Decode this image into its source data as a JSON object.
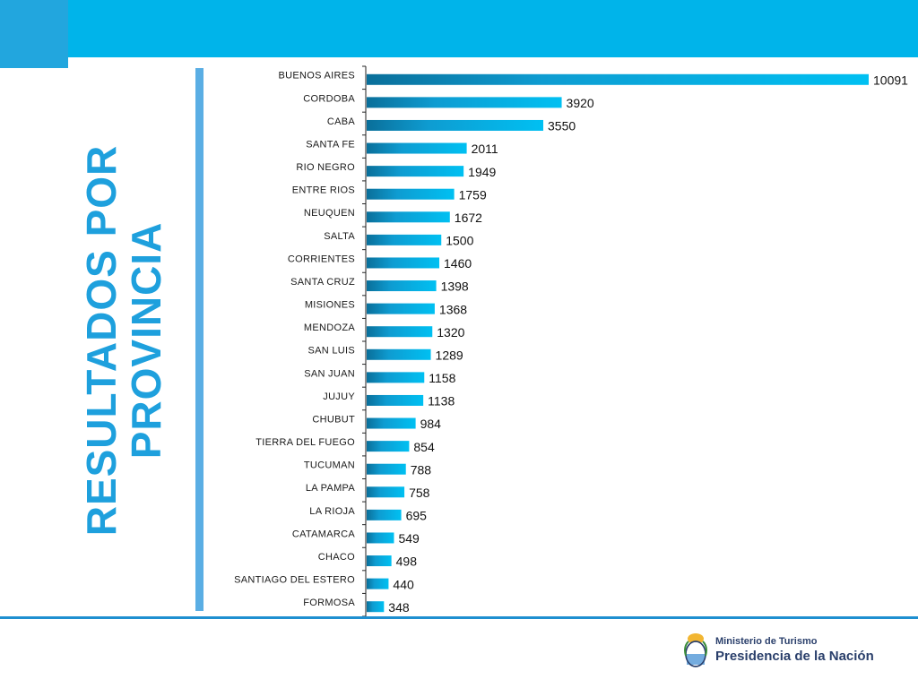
{
  "header": {
    "accent_color": "#00b4ea"
  },
  "side_title": {
    "line1": "RESULTADOS POR",
    "line2": "PROVINCIA"
  },
  "logo": {
    "line1": "Ministerio de Turismo",
    "line2": "Presidencia de la Nación",
    "icon": "argentina-coat-of-arms-icon"
  },
  "chart_data": {
    "type": "bar",
    "orientation": "horizontal",
    "title": "",
    "xlabel": "",
    "ylabel": "",
    "grid": false,
    "xlim": [
      0,
      10091
    ],
    "bar_color": "#00b4ea",
    "categories": [
      "BUENOS AIRES",
      "CORDOBA",
      "CABA",
      "SANTA FE",
      "RIO NEGRO",
      "ENTRE RIOS",
      "NEUQUEN",
      "SALTA",
      "CORRIENTES",
      "SANTA CRUZ",
      "MISIONES",
      "MENDOZA",
      "SAN LUIS",
      "SAN JUAN",
      "JUJUY",
      "CHUBUT",
      "TIERRA DEL FUEGO",
      "TUCUMAN",
      "LA PAMPA",
      "LA RIOJA",
      "CATAMARCA",
      "CHACO",
      "SANTIAGO DEL ESTERO",
      "FORMOSA"
    ],
    "values": [
      10091,
      3920,
      3550,
      2011,
      1949,
      1759,
      1672,
      1500,
      1460,
      1398,
      1368,
      1320,
      1289,
      1158,
      1138,
      984,
      854,
      788,
      758,
      695,
      549,
      498,
      440,
      348
    ]
  }
}
